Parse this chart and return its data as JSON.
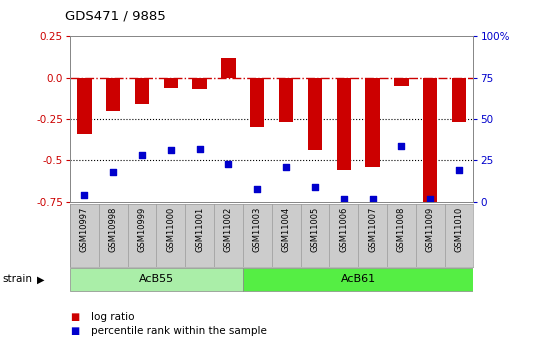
{
  "title": "GDS471 / 9885",
  "samples": [
    "GSM10997",
    "GSM10998",
    "GSM10999",
    "GSM11000",
    "GSM11001",
    "GSM11002",
    "GSM11003",
    "GSM11004",
    "GSM11005",
    "GSM11006",
    "GSM11007",
    "GSM11008",
    "GSM11009",
    "GSM11010"
  ],
  "log_ratio": [
    -0.34,
    -0.2,
    -0.16,
    -0.06,
    -0.07,
    0.12,
    -0.3,
    -0.27,
    -0.44,
    -0.56,
    -0.54,
    -0.05,
    -0.75,
    -0.27
  ],
  "percentile": [
    4,
    18,
    28,
    31,
    32,
    23,
    8,
    21,
    9,
    2,
    2,
    34,
    2,
    19
  ],
  "ylim_left": [
    -0.75,
    0.25
  ],
  "ylim_right": [
    0,
    100
  ],
  "dotted_lines": [
    -0.25,
    -0.5
  ],
  "bar_color": "#cc0000",
  "scatter_color": "#0000cc",
  "plot_bg": "#ffffff",
  "strain_groups": [
    {
      "label": "AcB55",
      "start": 0,
      "end": 5,
      "color": "#aaeea8"
    },
    {
      "label": "AcB61",
      "start": 6,
      "end": 13,
      "color": "#55ee44"
    }
  ],
  "strain_label": "strain",
  "legend_items": [
    {
      "label": "log ratio",
      "color": "#cc0000"
    },
    {
      "label": "percentile rank within the sample",
      "color": "#0000cc"
    }
  ],
  "left_yticks": [
    0.25,
    0.0,
    -0.25,
    -0.5,
    -0.75
  ],
  "right_yticks_vals": [
    0,
    25,
    50,
    75,
    100
  ],
  "right_ytick_labels": [
    "0",
    "25",
    "50",
    "75",
    "100%"
  ]
}
